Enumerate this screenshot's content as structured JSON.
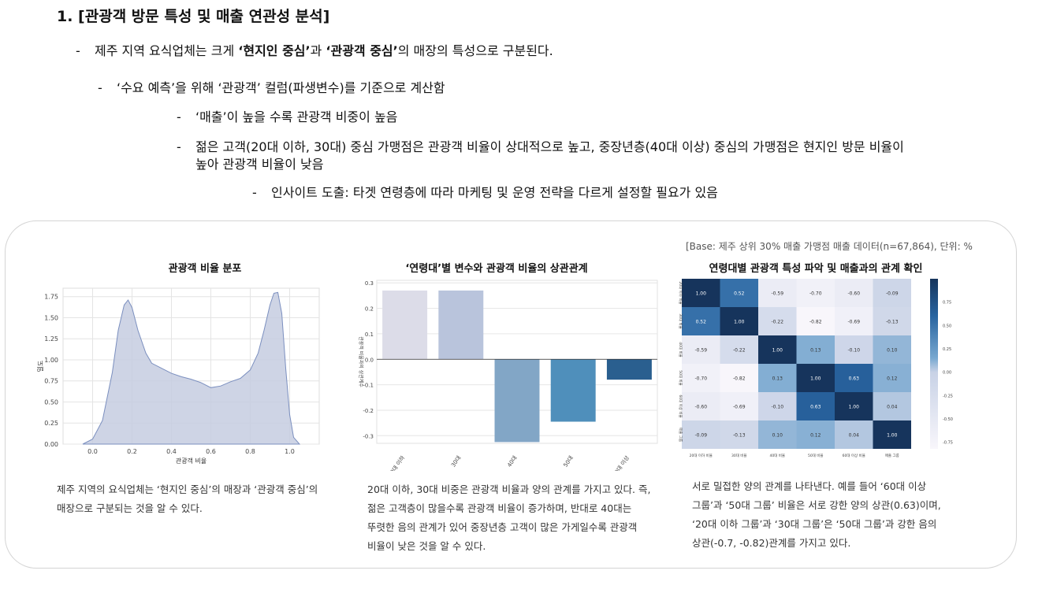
{
  "heading": "1. [관광객 방문 특성 및 매출 연관성 분석]",
  "bullets": {
    "b1_pre": "제주 지역 요식업체는 크게 ",
    "b1_s1": "‘현지인 중심’",
    "b1_mid": "과 ",
    "b1_s2": "‘관광객 중심’",
    "b1_post": "의 매장의 특성으로 구분된다.",
    "b2": "‘수요 예측’을 위해 ‘관광객’ 컬럼(파생변수)를 기준으로 계산함",
    "b3": "‘매출’이 높을 수록 관광객 비중이 높음",
    "b4a": "젊은 고객(20대 이하, 30대) 중심 가맹점은 관광객 비율이 상대적으로 높고, 중장년층(40대 이상) 중심의 가맹점은 현지인 방문 비율이",
    "b4b": "높아 관광객 비율이 낮음",
    "b5": "인사이트 도출: 타겟 연령층에 따라 마케팅 및 운영 전략을 다르게 설정할 필요가 있음",
    "dash": "-"
  },
  "base_note": "[Base: 제주 상위 30% 매출 가맹점 매출 데이터(n=67,864), 단위: %",
  "desc1": [
    "제주 지역의 요식업체는 ‘현지인 중심’의 매장과 ‘관광객 중심’의",
    "매장으로 구분되는 것을 알 수 있다."
  ],
  "desc2": [
    "20대 이하, 30대 비중은 관광객 비율과 양의 관계를 가지고 있다. 즉,",
    "젊은 고객층이 많을수록 관광객 비율이 증가하며, 반대로 40대는",
    "뚜렷한 음의 관계가 있어 중장년층 고객이 많은 가게일수록 관광객",
    "비율이 낮은 것을 알 수 있다."
  ],
  "desc3": [
    "서로 밀접한 양의 관계를 나타낸다. 예를 들어 ‘60대 이상",
    "그룹’과 ‘50대 그룹’ 비율은 서로 강한 양의 상관(0.63)이며,",
    "‘20대 이하 그룹’과 ‘30대 그룹’은 ‘50대 그룹’과 강한 음의",
    "상관(-0.7, -0.82)관계를 가지고 있다."
  ],
  "chart_data": [
    {
      "type": "area",
      "title": "관광객 비율 분포",
      "xlabel": "관광객 비율",
      "ylabel": "밀도",
      "xlim": [
        -0.15,
        1.15
      ],
      "ylim": [
        0,
        1.85
      ],
      "xticks": [
        "0.0",
        "0.2",
        "0.4",
        "0.6",
        "0.8",
        "1.0"
      ],
      "yticks": [
        "0.00",
        "0.25",
        "0.50",
        "0.75",
        "1.00",
        "1.25",
        "1.50",
        "1.75"
      ],
      "x": [
        -0.05,
        0.0,
        0.05,
        0.1,
        0.13,
        0.16,
        0.18,
        0.2,
        0.23,
        0.27,
        0.3,
        0.35,
        0.4,
        0.45,
        0.5,
        0.55,
        0.6,
        0.65,
        0.7,
        0.75,
        0.8,
        0.84,
        0.87,
        0.9,
        0.92,
        0.94,
        0.96,
        0.98,
        1.0,
        1.02,
        1.05
      ],
      "y": [
        0.0,
        0.06,
        0.28,
        0.85,
        1.35,
        1.65,
        1.71,
        1.62,
        1.35,
        1.08,
        0.96,
        0.9,
        0.84,
        0.8,
        0.77,
        0.73,
        0.67,
        0.69,
        0.74,
        0.78,
        0.88,
        1.08,
        1.35,
        1.65,
        1.79,
        1.8,
        1.55,
        0.9,
        0.35,
        0.08,
        0.0
      ],
      "color": "#7b8fbf"
    },
    {
      "type": "bar",
      "title": "‘연령대’별 변수와 관광객 비율의 상관관계",
      "ylabel": "관광객 비율과의 상관계수",
      "categories": [
        "20대 이하",
        "30대",
        "40대",
        "50대",
        "60대 이상"
      ],
      "values": [
        0.27,
        0.27,
        -0.325,
        -0.245,
        -0.08
      ],
      "ylim": [
        -0.33,
        0.31
      ],
      "yticks": [
        "0.3",
        "0.2",
        "0.1",
        "0.0",
        "-0.1",
        "-0.2",
        "-0.3"
      ],
      "colors": [
        "#dcdce8",
        "#b9c4dc",
        "#82a6c6",
        "#4f8fbb",
        "#2a5f8f"
      ]
    },
    {
      "type": "heatmap",
      "title": "연령대별 관광객 특성 파악 및 매출과의 관계 확인",
      "labels": [
        "20대 이하 비율",
        "30대 비율",
        "40대 비율",
        "50대 비율",
        "60대 이상 비율",
        "매출 그룹"
      ],
      "matrix": [
        [
          1.0,
          0.52,
          -0.59,
          -0.7,
          -0.6,
          -0.09
        ],
        [
          0.52,
          1.0,
          -0.22,
          -0.82,
          -0.69,
          -0.13
        ],
        [
          -0.59,
          -0.22,
          1.0,
          0.13,
          -0.1,
          0.1
        ],
        [
          -0.7,
          -0.82,
          0.13,
          1.0,
          0.63,
          0.12
        ],
        [
          -0.6,
          -0.69,
          -0.1,
          0.63,
          1.0,
          0.04
        ],
        [
          -0.09,
          -0.13,
          0.1,
          0.12,
          0.04,
          1.0
        ]
      ],
      "colorbar_ticks": [
        "0.75",
        "0.50",
        "0.25",
        "0.00",
        "-0.25",
        "-0.50",
        "-0.75"
      ],
      "vmin": -0.82,
      "vmax": 1.0
    }
  ]
}
